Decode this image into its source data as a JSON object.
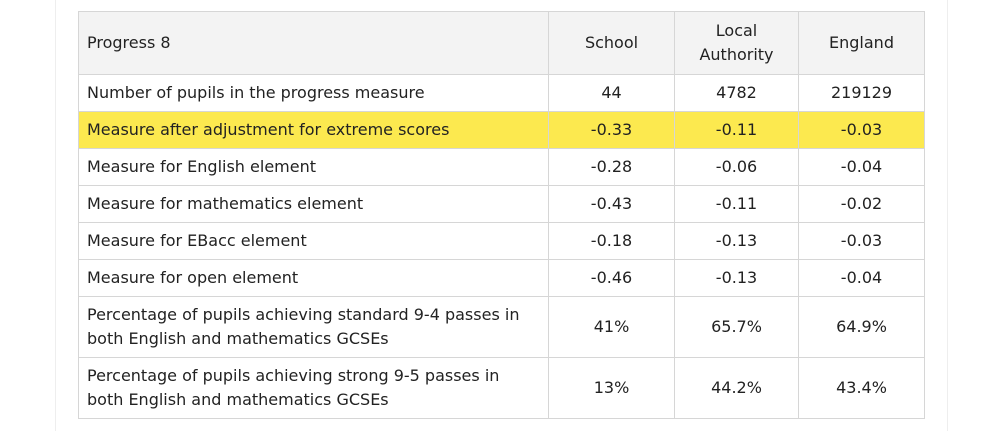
{
  "table": {
    "headers": {
      "measure": "Progress 8",
      "school": "School",
      "local_authority": "Local Authority",
      "england": "England"
    },
    "rows": [
      {
        "label": "Number of pupils in the progress measure",
        "school": "44",
        "la": "4782",
        "england": "219129"
      },
      {
        "label": "Measure after adjustment for extreme scores",
        "school": "-0.33",
        "la": "-0.11",
        "england": "-0.03"
      },
      {
        "label": "Measure for English element",
        "school": "-0.28",
        "la": "-0.06",
        "england": "-0.04"
      },
      {
        "label": "Measure for mathematics element",
        "school": "-0.43",
        "la": "-0.11",
        "england": "-0.02"
      },
      {
        "label": "Measure for EBacc element",
        "school": "-0.18",
        "la": "-0.13",
        "england": "-0.03"
      },
      {
        "label": "Measure for open element",
        "school": "-0.46",
        "la": "-0.13",
        "england": "-0.04"
      },
      {
        "label": "Percentage of pupils achieving standard 9-4 passes in both English and mathematics GCSEs",
        "school": "41%",
        "la": "65.7%",
        "england": "64.9%"
      },
      {
        "label": "Percentage of pupils achieving strong 9-5 passes in both English and mathematics GCSEs",
        "school": "13%",
        "la": "44.2%",
        "england": "43.4%"
      }
    ],
    "highlight_color": "#fce94f"
  }
}
